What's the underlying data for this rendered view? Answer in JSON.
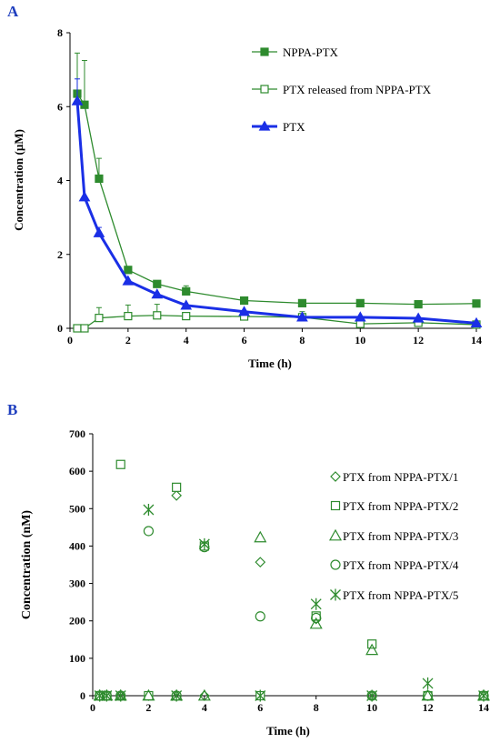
{
  "colors": {
    "green": "#2e8b2e",
    "blue": "#1a2fe6",
    "panel_label": "#1f3fbf"
  },
  "chart_data": [
    {
      "panel": "A",
      "type": "line",
      "xlabel": "Time (h)",
      "ylabel": "Concentration (µM)",
      "xlim": [
        0,
        14
      ],
      "ylim": [
        0,
        8
      ],
      "x_ticks": [
        "0",
        "2",
        "4",
        "6",
        "8",
        "10",
        "12",
        "14"
      ],
      "y_ticks": [
        "0",
        "2",
        "4",
        "6",
        "8"
      ],
      "grid": false,
      "legend_position": "top-right",
      "series": [
        {
          "name": "NPPA-PTX",
          "marker": "filled-square",
          "color": "#2e8b2e",
          "x": [
            0.25,
            0.5,
            1,
            2,
            3,
            4,
            6,
            8,
            10,
            12,
            14
          ],
          "y": [
            6.35,
            6.05,
            4.05,
            1.58,
            1.2,
            1.0,
            0.75,
            0.68,
            0.68,
            0.65,
            0.67
          ],
          "error_up": [
            1.1,
            1.2,
            0.55,
            0,
            0,
            0.15,
            0,
            0,
            0,
            0,
            0
          ]
        },
        {
          "name": "PTX released from NPPA-PTX",
          "marker": "open-square",
          "color": "#2e8b2e",
          "x": [
            0.25,
            0.5,
            1,
            2,
            3,
            4,
            6,
            8,
            10,
            12,
            14
          ],
          "y": [
            0.0,
            0.0,
            0.28,
            0.33,
            0.35,
            0.33,
            0.32,
            0.3,
            0.12,
            0.15,
            0.1
          ],
          "error_up": [
            0,
            0,
            0.28,
            0.3,
            0.3,
            0,
            0,
            0.15,
            0,
            0,
            0
          ]
        },
        {
          "name": "PTX",
          "marker": "filled-triangle",
          "color": "#1a2fe6",
          "x": [
            0.25,
            0.5,
            1,
            2,
            3,
            4,
            6,
            8,
            10,
            12,
            14
          ],
          "y": [
            6.15,
            3.55,
            2.58,
            1.28,
            0.92,
            0.62,
            0.45,
            0.3,
            0.3,
            0.27,
            0.14
          ],
          "error_up": [
            0.6,
            0,
            0.15,
            0,
            0,
            0,
            0,
            0,
            0,
            0,
            0
          ]
        }
      ]
    },
    {
      "panel": "B",
      "type": "scatter",
      "xlabel": "Time (h)",
      "ylabel": "Concentration (nM)",
      "xlim": [
        0,
        14
      ],
      "ylim": [
        0,
        700
      ],
      "x_ticks": [
        "0",
        "2",
        "4",
        "6",
        "8",
        "10",
        "12",
        "14"
      ],
      "y_ticks": [
        "0",
        "100",
        "200",
        "300",
        "400",
        "500",
        "600",
        "700"
      ],
      "grid": false,
      "legend_position": "right",
      "series": [
        {
          "name": "PTX from NPPA-PTX/1",
          "marker": "diamond",
          "color": "#2e8b2e",
          "x": [
            0.25,
            0.5,
            1,
            2,
            3,
            4,
            6,
            8,
            10,
            12,
            14
          ],
          "y": [
            0,
            0,
            0,
            0,
            535,
            0,
            357,
            205,
            0,
            0,
            0
          ]
        },
        {
          "name": "PTX from NPPA-PTX/2",
          "marker": "square",
          "color": "#2e8b2e",
          "x": [
            0.25,
            0.5,
            1,
            2,
            3,
            4,
            6,
            8,
            10,
            12,
            14
          ],
          "y": [
            0,
            0,
            618,
            0,
            557,
            400,
            0,
            213,
            138,
            0,
            0
          ]
        },
        {
          "name": "PTX from NPPA-PTX/3",
          "marker": "triangle",
          "color": "#2e8b2e",
          "x": [
            0.25,
            0.5,
            1,
            2,
            3,
            4,
            6,
            8,
            10,
            12,
            14
          ],
          "y": [
            0,
            0,
            0,
            0,
            0,
            0,
            423,
            192,
            122,
            0,
            0
          ]
        },
        {
          "name": "PTX from NPPA-PTX/4",
          "marker": "circle",
          "color": "#2e8b2e",
          "x": [
            0.25,
            0.5,
            1,
            2,
            3,
            4,
            6,
            8,
            10,
            12,
            14
          ],
          "y": [
            0,
            0,
            0,
            440,
            0,
            397,
            212,
            208,
            0,
            0,
            0
          ]
        },
        {
          "name": "PTX from NPPA-PTX/5",
          "marker": "star",
          "color": "#2e8b2e",
          "x": [
            0.25,
            0.5,
            1,
            2,
            3,
            4,
            6,
            8,
            10,
            12,
            14
          ],
          "y": [
            0,
            0,
            0,
            497,
            0,
            405,
            0,
            245,
            0,
            33,
            0
          ]
        }
      ]
    }
  ]
}
